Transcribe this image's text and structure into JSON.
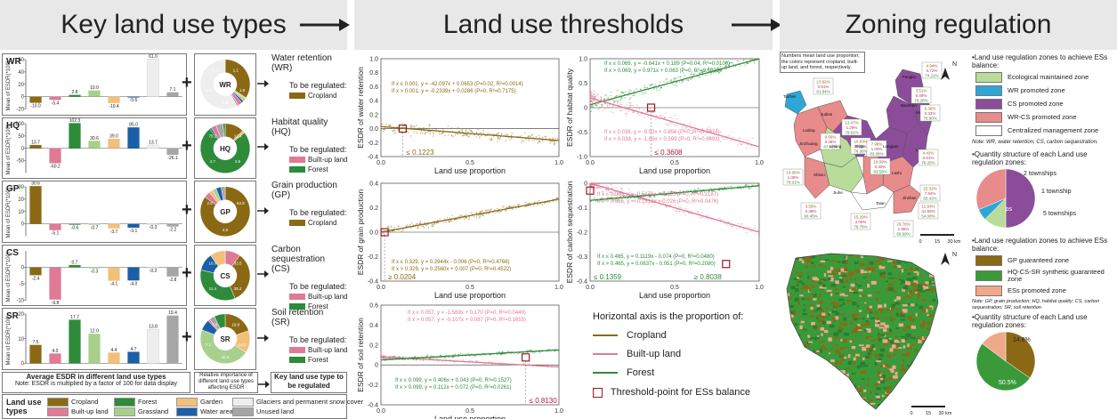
{
  "headers": {
    "h1": "Key land use types",
    "h2": "Land use thresholds",
    "h3": "Zoning regulation"
  },
  "colors": {
    "cropland": "#8B6914",
    "forest": "#2e8b3a",
    "garden": "#f2c07a",
    "glacier": "#eeeeee",
    "builtup": "#e07a95",
    "grassland": "#a8d08d",
    "water": "#1b5fa8",
    "unused": "#a6a6a6"
  },
  "panels": [
    {
      "code": "WR",
      "label": "Water retention",
      "abbr": "(WR)",
      "regulate": [
        "Cropland"
      ],
      "bars": [
        -10.0,
        -5.4,
        2.8,
        10.0,
        -10.4,
        -0.6,
        61.0,
        7.1
      ],
      "ymin": -20,
      "ymax": 60,
      "ticks": [
        "60",
        "40",
        "20",
        "0",
        "-20"
      ],
      "pie": [
        36.8,
        1.1,
        1.8,
        1.5,
        2.8,
        1.4,
        62.3
      ],
      "pieLabels": [
        "1.1",
        "1.8",
        "1.5",
        "0.0",
        "62.3"
      ]
    },
    {
      "code": "HQ",
      "label": "Habitat quality",
      "abbr": "(HQ)",
      "regulate": [
        "Built-up land",
        "Forest"
      ],
      "bars": [
        13.7,
        -60.2,
        102.3,
        30.6,
        39.0,
        85.0,
        13.7,
        -26.1
      ],
      "ymin": -100,
      "ymax": 100,
      "ticks": [
        "100",
        "50",
        "0",
        "-50"
      ],
      "pie": [
        12.4,
        1.8,
        75.1,
        1.2,
        3.4,
        4.7,
        1.4
      ],
      "pieLabels": [
        "12.4",
        "2.6",
        "4.7",
        "75.1"
      ]
    },
    {
      "code": "GP",
      "label": "Grain production",
      "abbr": "(GP)",
      "regulate": [
        "Cropland"
      ],
      "bars": [
        30.6,
        -5.1,
        -0.6,
        -0.7,
        -3.7,
        -3.1,
        -0.3,
        -2.2
      ],
      "ymin": -10,
      "ymax": 30,
      "ticks": [
        "30",
        "20",
        "10",
        "0"
      ],
      "pie": [
        84.9,
        4.0,
        2.6,
        2.5,
        3.4,
        2.6
      ],
      "pieLabels": [
        "84.9",
        "4.0",
        "2.6"
      ]
    },
    {
      "code": "CS",
      "label": "Carbon sequestration",
      "abbr": "(CS)",
      "regulate": [
        "Built-up land",
        "Forest"
      ],
      "bars": [
        -2.4,
        -9.8,
        0.7,
        -0.3,
        -4.1,
        -4.0,
        -0.2,
        -2.8
      ],
      "ymin": -10,
      "ymax": 5,
      "ticks": [
        "0",
        "-5",
        "-10"
      ],
      "pie": [
        10.0,
        33.5,
        35.2,
        11.4,
        10.0
      ],
      "pieLabels": [
        "33.5",
        "35.2",
        "11.4",
        "10.0"
      ]
    },
    {
      "code": "SR",
      "label": "Soil retention",
      "abbr": "(SR)",
      "regulate": [
        "Built-up land",
        "Forest"
      ],
      "bars": [
        7.5,
        4.0,
        17.7,
        12.0,
        4.4,
        4.7,
        13.8,
        19.4
      ],
      "ymin": 0,
      "ymax": 20,
      "ticks": [
        "20",
        "10",
        "0"
      ],
      "pie": [
        19.8,
        14.5,
        46.5,
        7.1,
        1.3,
        3.6,
        7.2
      ],
      "pieLabels": [
        "19.8",
        "14.5",
        "46.5",
        "7.1",
        "3.6"
      ]
    }
  ],
  "left_footer": {
    "avg_label": "Average ESDR in different land use types",
    "note": "Note: ESDR is multiplied by a factor of 100 for data display",
    "rel_label": "Relative importance of different land use types affecting ESDR",
    "key_label": "Key land use type to be regulated",
    "ylabel": "Mean of ESDR(*100)",
    "regulate_title": "To be regulated:"
  },
  "legend_lu": {
    "title": "Land use types",
    "items": [
      {
        "label": "Cropland",
        "key": "cropland"
      },
      {
        "label": "Forest",
        "key": "forest"
      },
      {
        "label": "Garden",
        "key": "garden"
      },
      {
        "label": "Glaciers and permanent snow cover",
        "key": "glacier"
      },
      {
        "label": "Built-up land",
        "key": "builtup"
      },
      {
        "label": "Grassland",
        "key": "grassland"
      },
      {
        "label": "Water area",
        "key": "water"
      },
      {
        "label": "Unused land",
        "key": "unused"
      }
    ]
  },
  "chart_data": [
    {
      "type": "scatter",
      "title": "ESDR of water retention",
      "xlabel": "Land use proportion",
      "ylabel": "ESDR of water retention",
      "xlim": [
        0,
        1
      ],
      "ylim": [
        -0.4,
        1.0
      ],
      "yticks": [
        "1.0",
        "0.8",
        "0.6",
        "0.4",
        "0.2",
        "0.0",
        "-0.2",
        "-0.4"
      ],
      "eqs": [
        "If x ≤ 0.001, y = -42.097x + 0.0653 (P=0.02, R²=0.0014)",
        "If x > 0.001, y = -0.2339x + 0.0286 (P=0, R²=0.7175)"
      ],
      "threshold": "≤ 0.1223",
      "series": [
        "cropland"
      ]
    },
    {
      "type": "scatter",
      "title": "ESDR of habitat quality",
      "xlabel": "Land use proportion",
      "ylabel": "ESDR of habitat quality",
      "xlim": [
        0,
        1
      ],
      "ylim": [
        -1.0,
        1.0
      ],
      "yticks": [
        "1.0",
        "0.5",
        "0",
        "-0.5",
        "-1.0"
      ],
      "eqs": [
        "If x ≤ 0.069, y = -0.641x + 0.189 (P=0.04, R²=0.0100)",
        "If x > 0.069, y = 0.971x + 0.063 (P=0, R²=0.6839)",
        "If x ≤ 0.038, y = -9.52x + 0.856 (P=0, R²=0.0574)",
        "If x > 0.038, y = -1.66x + 0.599 (P=0, R²=0.6493)"
      ],
      "threshold": "≤ 0.3608",
      "series": [
        "forest",
        "builtup"
      ]
    },
    {
      "type": "scatter",
      "title": "ESDR of grain production",
      "xlabel": "Land use proportion",
      "ylabel": "ESDR of grain production",
      "xlim": [
        0,
        1
      ],
      "ylim": [
        -0.4,
        0.4
      ],
      "yticks": [
        "0.4",
        "0.2",
        "0.0",
        "-0.2",
        "-0.4"
      ],
      "eqs": [
        "If x ≤ 0.329, y = 0.2944x - 0.006 (P=0, R²=0.4766)",
        "If x > 0.329, y = 0.2560x + 0.007 (P=0, R²=0.4522)"
      ],
      "threshold": "≥ 0.0204",
      "series": [
        "cropland"
      ]
    },
    {
      "type": "scatter",
      "title": "ESDR of carbon sequestration",
      "xlabel": "Land use proportion",
      "ylabel": "ESDR of carbon sequestration",
      "xlim": [
        0,
        1
      ],
      "ylim": [
        -0.4,
        0.0
      ],
      "yticks": [
        "0",
        "-0.1",
        "-0.2",
        "-0.3",
        "-0.4"
      ],
      "eqs": [
        "If x ≤ 0.086, y = -0.5476x + 0.005 (P=0, R²=0.2187)",
        "If x > 0.086, y = -0.1912x + 0.026 (P=0, R²=0.0476)",
        "If x ≤ 0.465, y = 0.1119x - 0.074 (P=0, R²=0.0480)",
        "If x > 0.465, y = 0.0637x - 0.051 (P=0, R²=0.2080)"
      ],
      "threshold": "≤ 0.1359",
      "threshold2": "≥ 0.8038",
      "series": [
        "builtup",
        "forest"
      ]
    },
    {
      "type": "scatter",
      "title": "ESDR of soil retention",
      "xlabel": "Land use proportion",
      "ylabel": "ESDR of soil retention",
      "xlim": [
        0,
        1
      ],
      "ylim": [
        -0.4,
        0.6
      ],
      "yticks": [
        "0.6",
        "0.4",
        "0.2",
        "0",
        "-0.2",
        "-0.4"
      ],
      "eqs": [
        "If x ≤ 0.057, y = -1.569x + 0.170 (P=0, R²=0.0449)",
        "If x > 0.057, y = -0.107x + 0.087 (P=0, R²=0.1655)",
        "If x ≤ 0.099, y = 0.406x + 0.043 (P=0, R²=0.1527)",
        "If x > 0.099, y = 0.112x + 0.072 (P=0, R²=0.0261)"
      ],
      "threshold": "≤ 0.8130",
      "series": [
        "builtup",
        "forest"
      ]
    }
  ],
  "mid_legend": {
    "title": "Horizontal axis is the proportion of:",
    "items": [
      {
        "label": "Cropland",
        "key": "cropland"
      },
      {
        "label": "Built-up land",
        "key": "builtup"
      },
      {
        "label": "Forest",
        "key": "forest"
      }
    ],
    "threshold_label": "Threshold-point for ESs balance"
  },
  "xticks": [
    "0.0",
    "0.5",
    "1.0"
  ],
  "map1": {
    "note": "Numbers mean land use proportion; the colors represent cropland, built-up land, and forest, respectively.",
    "north": "N",
    "scale": [
      "0",
      "15",
      "30 km"
    ],
    "towns": [
      {
        "name": "Tachen",
        "vals": [
          "13.92%",
          "0.91%",
          "81.84%"
        ]
      },
      {
        "name": "Luding",
        "vals": [
          "13.47%",
          "1.29%",
          "79.61%"
        ]
      },
      {
        "name": "Judian",
        "vals": [
          "9.66%",
          "0.48%",
          "87.45%"
        ]
      },
      {
        "name": "Liming",
        "vals": [
          "10.63%",
          "2.05%",
          "76.36%"
        ]
      },
      {
        "name": "Fengke",
        "vals": [
          "4.94%",
          "0.72%",
          "74.11%"
        ]
      },
      {
        "name": "Baoshan",
        "vals": [
          "3.51%",
          "0.49%",
          "76.28%"
        ]
      },
      {
        "name": "Mingyin",
        "vals": [
          "5.36%",
          "0.33%",
          "76.90%"
        ]
      },
      {
        "name": "Lijiang",
        "vals": [
          "4.42%",
          "0.61%",
          "76.25%"
        ]
      },
      {
        "name": "Shigu",
        "vals": [
          "7.98%",
          "1.00%",
          "83.08%"
        ]
      },
      {
        "name": "Longpan",
        "vals": [
          "10.09%",
          "0.30%",
          "83.59%"
        ]
      },
      {
        "name": "Shitou",
        "vals": [
          "3.55%",
          "0.38%",
          "90.45%"
        ]
      },
      {
        "name": "Jinzhuang",
        "vals": [
          "14.06%",
          "1.08%",
          "78.01%"
        ]
      },
      {
        "name": "Jiuhe",
        "vals": [
          "15.29%",
          "3.05%",
          "79.76%"
        ]
      },
      {
        "name": "Lashi",
        "vals": [
          "22.32%",
          "7.94%",
          "65.42%"
        ]
      },
      {
        "name": "Taian",
        "vals": [
          "20.76%",
          "1.86%",
          "69.99%"
        ]
      },
      {
        "name": "Jinshan",
        "vals": [
          "11.93%",
          "31.58%",
          "54.08%"
        ]
      }
    ]
  },
  "map2": {
    "north": "N",
    "scale": [
      "0",
      "15",
      "30 km"
    ]
  },
  "right_legend": {
    "sec1_title": "•Land use regulation zones to achieve ESs balance:",
    "sec1_items": [
      {
        "label": "Ecological maintained zone",
        "color": "#b9dc9a"
      },
      {
        "label": "WR promoted zone",
        "color": "#2ea7d6"
      },
      {
        "label": "CS promoted zone",
        "color": "#8b4d9a"
      },
      {
        "label": "WR-CS promoted zone",
        "color": "#e88b8b"
      },
      {
        "label": "Centralized management zone",
        "color": "#ffffff"
      }
    ],
    "note1": "Note: WR, water retention; CS, carbon sequestration.",
    "pie1_title": "•Quantity structure of each Land use regulation zones:",
    "pie1": [
      {
        "label": "8 townships",
        "value": 8,
        "color": "#8b4d9a"
      },
      {
        "label": "2 townships",
        "value": 2,
        "color": "#b9dc9a"
      },
      {
        "label": "1 township",
        "value": 1,
        "color": "#2ea7d6"
      },
      {
        "label": "5 townships",
        "value": 5,
        "color": "#e88b8b"
      }
    ],
    "sec2_title": "•Land use regulation zones to achieve ESs balance:",
    "sec2_items": [
      {
        "label": "GP guaranteed zone",
        "color": "#8B6914"
      },
      {
        "label": "HQ-CS-SR synthetic guaranteed zone",
        "color": "#3a9a3a"
      },
      {
        "label": "ESs promoted zone",
        "color": "#f0a88a"
      }
    ],
    "note2": "Note: GP, grain production; HQ, habitat quality; CS, carbon sequestration; SR, soil retention",
    "pie2_title": "•Quantity structure of each Land use regulation zones:",
    "pie2": [
      {
        "label": "34.7%",
        "value": 34.7,
        "color": "#8B6914"
      },
      {
        "label": "50.5%",
        "value": 50.5,
        "color": "#3a9a3a"
      },
      {
        "label": "14.8%",
        "value": 14.8,
        "color": "#f0a88a"
      }
    ]
  }
}
